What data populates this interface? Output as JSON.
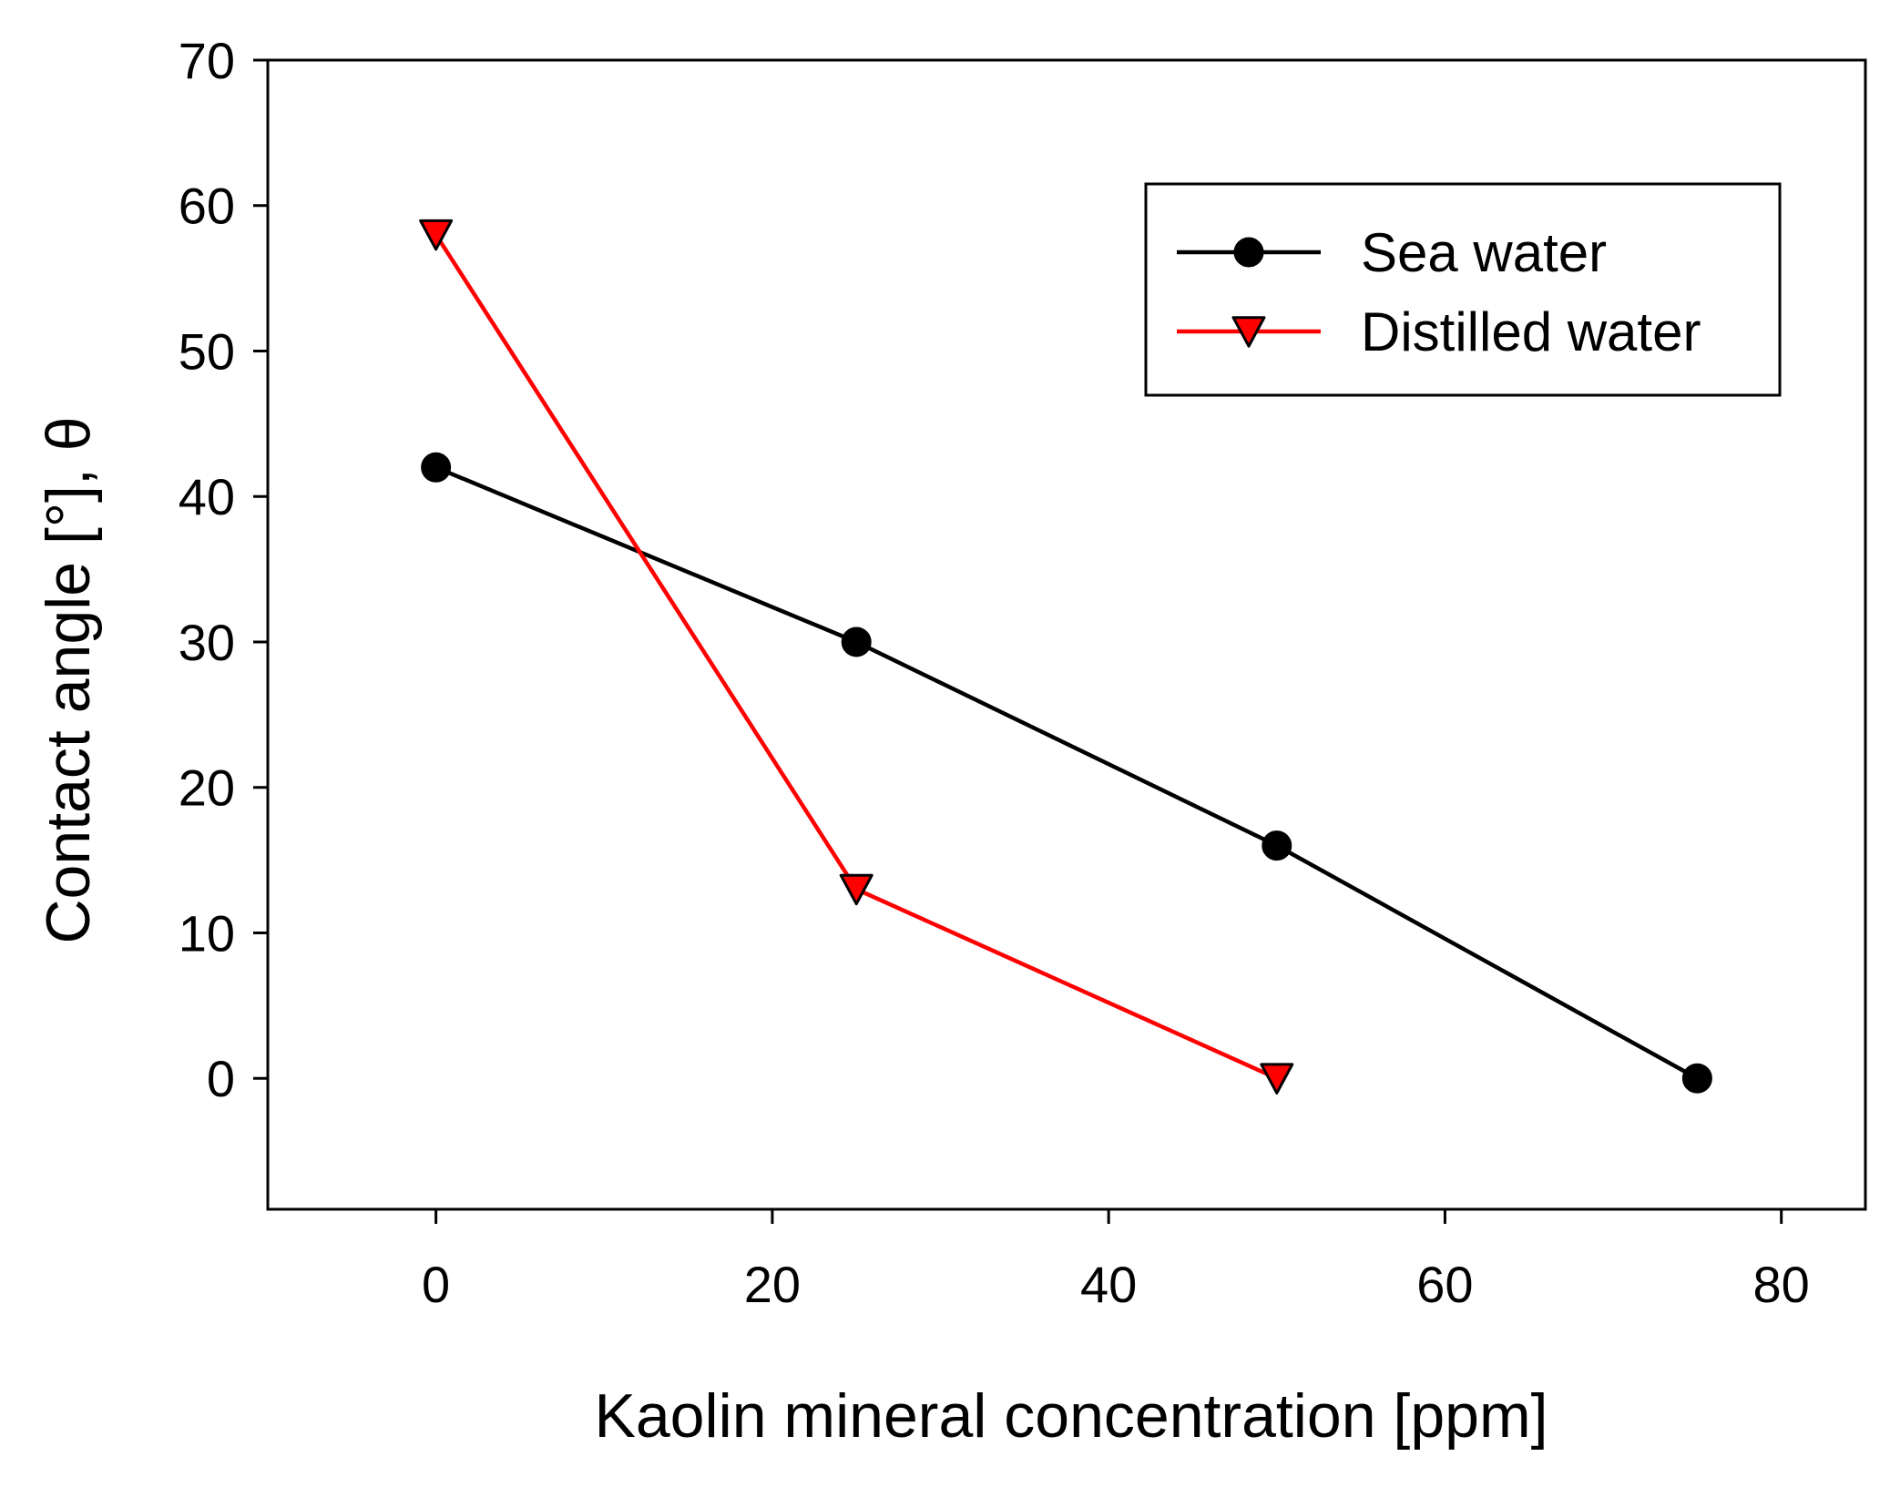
{
  "chart_data": {
    "type": "line",
    "title": "",
    "xlabel": "Kaolin mineral concentration [ppm]",
    "ylabel": "Contact angle [°], θ",
    "xlim": [
      -10,
      85
    ],
    "ylim": [
      -9,
      70
    ],
    "xticks": [
      0,
      20,
      40,
      60,
      80
    ],
    "yticks": [
      0,
      10,
      20,
      30,
      40,
      50,
      60,
      70
    ],
    "grid": false,
    "legend_position": "top-right",
    "series": [
      {
        "name": "Sea water",
        "color": "#000000",
        "marker": "circle",
        "x": [
          0,
          25,
          50,
          75
        ],
        "y": [
          42,
          30,
          16,
          0
        ]
      },
      {
        "name": "Distilled water",
        "color": "#ff0000",
        "marker": "triangle-down",
        "x": [
          0,
          25,
          50
        ],
        "y": [
          58,
          13,
          0
        ]
      }
    ]
  }
}
